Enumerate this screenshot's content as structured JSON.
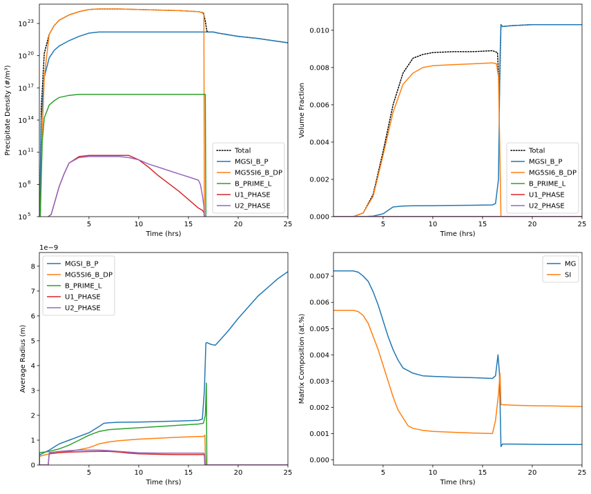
{
  "chart_data": [
    {
      "id": "density",
      "type": "line",
      "title": "",
      "xlabel": "Time (hrs)",
      "ylabel": "Precipitate Density (#/m³)",
      "yscale": "log",
      "xlim": [
        0.01,
        25
      ],
      "ylim_log10": [
        5,
        24.8
      ],
      "xticks": [
        5,
        10,
        15,
        20,
        25
      ],
      "xtick_labels": [
        "5",
        "10",
        "15",
        "20",
        "25"
      ],
      "yticks_log10": [
        5,
        8,
        11,
        14,
        17,
        20,
        23
      ],
      "ytick_base": "10",
      "ytick_exponents": [
        "5",
        "8",
        "11",
        "14",
        "17",
        "20",
        "23"
      ],
      "legend_loc": "lower-right",
      "series": [
        {
          "name": "Total",
          "color": "#000000",
          "dash": "dotted",
          "label": "Total",
          "x": [
            0.05,
            0.2,
            0.5,
            1,
            1.5,
            2,
            3,
            4,
            5,
            6,
            8,
            10,
            12,
            14,
            15,
            16,
            16.5,
            16.7,
            16.85,
            17,
            17.5,
            18,
            20,
            22,
            25
          ],
          "log10": [
            5,
            15,
            20.2,
            22,
            22.8,
            23.3,
            23.8,
            24.1,
            24.3,
            24.35,
            24.35,
            24.3,
            24.25,
            24.2,
            24.15,
            24.1,
            24,
            23.2,
            22.3,
            22.2,
            22.2,
            22.1,
            21.8,
            21.6,
            21.2
          ]
        },
        {
          "name": "MGSI_B_P",
          "color": "#1f77b4",
          "dash": "solid",
          "label": "MGSI_B_P",
          "x": [
            0.05,
            0.2,
            0.5,
            1,
            1.5,
            2,
            3,
            4,
            5,
            6,
            8,
            10,
            12,
            14,
            16,
            16.8,
            17,
            17.5,
            18,
            20,
            22,
            25
          ],
          "log10": [
            5,
            14,
            18,
            19.8,
            20.5,
            20.9,
            21.4,
            21.8,
            22.1,
            22.2,
            22.2,
            22.2,
            22.2,
            22.2,
            22.2,
            22.2,
            22.2,
            22.2,
            22.1,
            21.8,
            21.6,
            21.2
          ]
        },
        {
          "name": "MG5SI6_B_DP",
          "color": "#ff7f0e",
          "dash": "solid",
          "label": "MG5SI6_B_DP",
          "x": [
            0.1,
            0.3,
            0.5,
            1,
            1.5,
            2,
            3,
            4,
            5,
            6,
            8,
            10,
            12,
            14,
            15,
            16,
            16.4,
            16.55,
            16.6
          ],
          "log10": [
            5,
            13,
            18,
            22,
            22.8,
            23.3,
            23.8,
            24.1,
            24.3,
            24.35,
            24.35,
            24.3,
            24.25,
            24.2,
            24.15,
            24.1,
            24,
            23.8,
            5
          ]
        },
        {
          "name": "B_PRIME_L",
          "color": "#2ca02c",
          "dash": "solid",
          "label": "B_PRIME_L",
          "x": [
            0.1,
            0.3,
            0.5,
            1,
            1.5,
            2,
            3,
            4,
            5,
            8,
            12,
            16,
            16.7,
            16.75
          ],
          "log10": [
            5,
            12,
            14.2,
            15.4,
            15.8,
            16.1,
            16.3,
            16.4,
            16.4,
            16.4,
            16.4,
            16.4,
            16.4,
            5
          ]
        },
        {
          "name": "U1_PHASE",
          "color": "#d62728",
          "dash": "solid",
          "label": "U1_PHASE",
          "x": [
            0.9,
            1.2,
            1.6,
            2,
            2.5,
            3,
            4,
            5,
            6,
            7,
            8,
            9,
            10,
            11,
            12,
            13,
            14,
            15,
            16,
            16.4,
            16.55,
            16.6
          ],
          "log10": [
            5,
            5.2,
            6.5,
            7.8,
            9,
            10,
            10.6,
            10.7,
            10.7,
            10.7,
            10.7,
            10.7,
            10.3,
            9.6,
            8.8,
            8.1,
            7.4,
            6.6,
            5.8,
            5.6,
            5.4,
            5
          ]
        },
        {
          "name": "U2_PHASE",
          "color": "#9467bd",
          "dash": "solid",
          "label": "U2_PHASE",
          "x": [
            0.9,
            1.2,
            1.6,
            2,
            2.5,
            3,
            4,
            5,
            6,
            7,
            8,
            9,
            10,
            11,
            12,
            13,
            14,
            15,
            16,
            16.2,
            16.4,
            16.55,
            16.6
          ],
          "log10": [
            5,
            5.2,
            6.5,
            7.8,
            9,
            10,
            10.5,
            10.6,
            10.6,
            10.6,
            10.6,
            10.5,
            10.3,
            9.9,
            9.6,
            9.3,
            9,
            8.7,
            8.4,
            8,
            7,
            6,
            5
          ]
        }
      ]
    },
    {
      "id": "volume",
      "type": "line",
      "title": "",
      "xlabel": "Time (hrs)",
      "ylabel": "Volume Fraction",
      "yscale": "linear",
      "xlim": [
        0.01,
        25
      ],
      "ylim": [
        0,
        0.0114
      ],
      "xticks": [
        5,
        10,
        15,
        20,
        25
      ],
      "xtick_labels": [
        "5",
        "10",
        "15",
        "20",
        "25"
      ],
      "yticks": [
        0,
        0.002,
        0.004,
        0.006,
        0.008,
        0.01
      ],
      "ytick_labels": [
        "0.000",
        "0.002",
        "0.004",
        "0.006",
        "0.008",
        "0.010"
      ],
      "legend_loc": "lower-right",
      "series": [
        {
          "name": "Total",
          "color": "#000000",
          "dash": "dotted",
          "label": "Total",
          "x": [
            0,
            2,
            3,
            4,
            5,
            6,
            7,
            8,
            9,
            10,
            12,
            14,
            16,
            16.5,
            16.7,
            16.85,
            17,
            18,
            20,
            25
          ],
          "y": [
            0,
            0,
            0.0002,
            0.0012,
            0.0035,
            0.006,
            0.0077,
            0.0085,
            0.0087,
            0.0088,
            0.00885,
            0.00885,
            0.0089,
            0.0088,
            0.0065,
            0.0103,
            0.0102,
            0.01025,
            0.0103,
            0.0103
          ]
        },
        {
          "name": "MGSI_B_P",
          "color": "#1f77b4",
          "dash": "solid",
          "label": "MGSI_B_P",
          "x": [
            0,
            2,
            3,
            4,
            5,
            6,
            7,
            8,
            10,
            12,
            14,
            16,
            16.3,
            16.6,
            16.75,
            16.85,
            17,
            18,
            20,
            25
          ],
          "y": [
            0,
            0,
            0,
            3e-05,
            0.00015,
            0.00052,
            0.00057,
            0.00058,
            0.00059,
            0.0006,
            0.00061,
            0.00063,
            0.0007,
            0.002,
            0.0085,
            0.0103,
            0.0102,
            0.01025,
            0.0103,
            0.0103
          ]
        },
        {
          "name": "MG5SI6_B_DP",
          "color": "#ff7f0e",
          "dash": "solid",
          "label": "MG5SI6_B_DP",
          "x": [
            0,
            2,
            3,
            4,
            5,
            6,
            7,
            8,
            9,
            10,
            12,
            14,
            16,
            16.4,
            16.6,
            16.75,
            16.85
          ],
          "y": [
            0,
            0,
            0.0002,
            0.0011,
            0.0033,
            0.0056,
            0.0071,
            0.0077,
            0.008,
            0.0081,
            0.00815,
            0.0082,
            0.00825,
            0.0082,
            0.0075,
            0.003,
            0
          ]
        },
        {
          "name": "B_PRIME_L",
          "color": "#2ca02c",
          "dash": "solid",
          "label": "B_PRIME_L",
          "x": [
            0,
            25
          ],
          "y": [
            0,
            0
          ]
        },
        {
          "name": "U1_PHASE",
          "color": "#d62728",
          "dash": "solid",
          "label": "U1_PHASE",
          "x": [
            0,
            25
          ],
          "y": [
            0,
            0
          ]
        },
        {
          "name": "U2_PHASE",
          "color": "#9467bd",
          "dash": "solid",
          "label": "U2_PHASE",
          "x": [
            0,
            25
          ],
          "y": [
            0,
            0
          ]
        }
      ]
    },
    {
      "id": "radius",
      "type": "line",
      "title": "",
      "xlabel": "Time (hrs)",
      "ylabel": "Average Radius (m)",
      "yscale": "linear",
      "offset_text": "1e−9",
      "xlim": [
        0.01,
        25
      ],
      "ylim": [
        0,
        8.55
      ],
      "xticks": [
        5,
        10,
        15,
        20,
        25
      ],
      "xtick_labels": [
        "5",
        "10",
        "15",
        "20",
        "25"
      ],
      "yticks": [
        0,
        1,
        2,
        3,
        4,
        5,
        6,
        7,
        8
      ],
      "ytick_labels": [
        "0",
        "1",
        "2",
        "3",
        "4",
        "5",
        "6",
        "7",
        "8"
      ],
      "legend_loc": "upper-left",
      "series": [
        {
          "name": "MGSI_B_P",
          "color": "#1f77b4",
          "dash": "solid",
          "label": "MGSI_B_P",
          "x": [
            0.01,
            0.02,
            0.5,
            1,
            2,
            3,
            4,
            5,
            6,
            6.5,
            7,
            8,
            10,
            12,
            14,
            16,
            16.4,
            16.6,
            16.75,
            16.85,
            17,
            17.3,
            17.7,
            18,
            19,
            20,
            21,
            22,
            23,
            24,
            25
          ],
          "y": [
            0,
            0.4,
            0.5,
            0.6,
            0.85,
            1.0,
            1.15,
            1.3,
            1.55,
            1.68,
            1.7,
            1.72,
            1.73,
            1.75,
            1.77,
            1.8,
            1.85,
            3.0,
            4.9,
            4.93,
            4.9,
            4.85,
            4.82,
            4.95,
            5.4,
            5.9,
            6.35,
            6.8,
            7.15,
            7.5,
            7.78
          ]
        },
        {
          "name": "MG5SI6_B_DP",
          "color": "#ff7f0e",
          "dash": "solid",
          "label": "MG5SI6_B_DP",
          "x": [
            0.01,
            0.02,
            0.5,
            1,
            2,
            3,
            4,
            5,
            6,
            7,
            8,
            10,
            12,
            14,
            16,
            16.5,
            16.65,
            16.7,
            16.75
          ],
          "y": [
            0,
            0.35,
            0.4,
            0.45,
            0.5,
            0.55,
            0.62,
            0.7,
            0.85,
            0.93,
            0.98,
            1.04,
            1.08,
            1.12,
            1.15,
            1.15,
            1.2,
            0.4,
            0
          ]
        },
        {
          "name": "B_PRIME_L",
          "color": "#2ca02c",
          "dash": "solid",
          "label": "B_PRIME_L",
          "x": [
            0.01,
            0.02,
            0.5,
            1,
            2,
            3,
            4,
            5,
            6,
            7,
            8,
            10,
            12,
            14,
            16,
            16.5,
            16.7,
            16.8,
            16.85
          ],
          "y": [
            0,
            0.5,
            0.52,
            0.55,
            0.65,
            0.8,
            1.0,
            1.2,
            1.35,
            1.42,
            1.45,
            1.5,
            1.55,
            1.6,
            1.65,
            1.68,
            2.0,
            3.3,
            0
          ]
        },
        {
          "name": "U1_PHASE",
          "color": "#d62728",
          "dash": "solid",
          "label": "U1_PHASE",
          "x": [
            0,
            0.9,
            1.0,
            2,
            3,
            4,
            5,
            6,
            7,
            8,
            9,
            10,
            12,
            14,
            16,
            16.5,
            16.6,
            16.65,
            25
          ],
          "y": [
            0,
            0,
            0.45,
            0.5,
            0.52,
            0.53,
            0.54,
            0.55,
            0.55,
            0.52,
            0.48,
            0.45,
            0.43,
            0.42,
            0.42,
            0.42,
            0.4,
            0,
            0
          ]
        },
        {
          "name": "U2_PHASE",
          "color": "#9467bd",
          "dash": "solid",
          "label": "U2_PHASE",
          "x": [
            0,
            0.9,
            1.0,
            2,
            3,
            4,
            5,
            6,
            7,
            8,
            9,
            10,
            12,
            14,
            16,
            16.5,
            16.6,
            16.65,
            25
          ],
          "y": [
            0,
            0,
            0.5,
            0.55,
            0.58,
            0.6,
            0.6,
            0.6,
            0.58,
            0.55,
            0.52,
            0.49,
            0.48,
            0.48,
            0.48,
            0.48,
            0.45,
            0,
            0
          ]
        }
      ]
    },
    {
      "id": "composition",
      "type": "line",
      "title": "",
      "xlabel": "Time (hrs)",
      "ylabel": "Matrix Composition (at.%)",
      "yscale": "linear",
      "xlim": [
        0.01,
        25
      ],
      "ylim": [
        -0.0002,
        0.0079
      ],
      "xticks": [
        5,
        10,
        15,
        20,
        25
      ],
      "xtick_labels": [
        "5",
        "10",
        "15",
        "20",
        "25"
      ],
      "yticks": [
        0,
        0.001,
        0.002,
        0.003,
        0.004,
        0.005,
        0.006,
        0.007
      ],
      "ytick_labels": [
        "0.000",
        "0.001",
        "0.002",
        "0.003",
        "0.004",
        "0.005",
        "0.006",
        "0.007"
      ],
      "legend_loc": "upper-right",
      "series": [
        {
          "name": "MG",
          "color": "#1f77b4",
          "dash": "solid",
          "label": "MG",
          "x": [
            0,
            1,
            2,
            2.5,
            3,
            3.5,
            4,
            4.5,
            5,
            5.5,
            6,
            6.5,
            7,
            8,
            9,
            10,
            12,
            14,
            16,
            16.3,
            16.55,
            16.7,
            16.85,
            17,
            18,
            20,
            22,
            25
          ],
          "y": [
            0.0072,
            0.0072,
            0.0072,
            0.00715,
            0.007,
            0.0068,
            0.0064,
            0.0059,
            0.0053,
            0.0047,
            0.0042,
            0.0038,
            0.0035,
            0.0033,
            0.0032,
            0.00318,
            0.00315,
            0.00313,
            0.0031,
            0.0032,
            0.004,
            0.0033,
            0.0005,
            0.0006,
            0.0006,
            0.00059,
            0.00058,
            0.00058
          ]
        },
        {
          "name": "SI",
          "color": "#ff7f0e",
          "dash": "solid",
          "label": "SI",
          "x": [
            0,
            1,
            2,
            2.5,
            3,
            3.5,
            4,
            4.5,
            5,
            5.5,
            6,
            6.5,
            7,
            7.5,
            8,
            9,
            10,
            12,
            14,
            16,
            16.3,
            16.6,
            16.75,
            16.85,
            17,
            18,
            20,
            22,
            25
          ],
          "y": [
            0.0057,
            0.0057,
            0.0057,
            0.00565,
            0.0055,
            0.0052,
            0.0047,
            0.0042,
            0.0036,
            0.003,
            0.0024,
            0.0019,
            0.0016,
            0.0013,
            0.0012,
            0.00112,
            0.00108,
            0.00105,
            0.00102,
            0.001,
            0.0015,
            0.0025,
            0.0033,
            0.0021,
            0.0021,
            0.00208,
            0.00206,
            0.00205,
            0.00203
          ]
        }
      ]
    }
  ]
}
